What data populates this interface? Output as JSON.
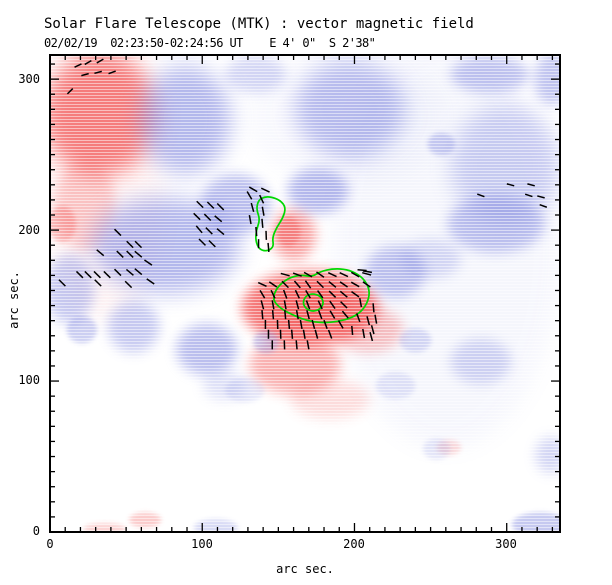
{
  "header": {
    "title": "Solar Flare Telescope (MTK) : vector magnetic field",
    "subtitle": "02/02/19  02:23:50-02:24:56 UT    E 4' 0\"  S 2'38\""
  },
  "axes": {
    "xlabel": "arc sec.",
    "ylabel": "arc sec.",
    "x_tick_labels": [
      "0",
      "100",
      "200",
      "300"
    ],
    "y_tick_labels": [
      "0",
      "100",
      "200",
      "300"
    ]
  },
  "chart_data": {
    "type": "heatmap",
    "title": "Solar Flare Telescope (MTK) : vector magnetic field",
    "subtitle": "02/02/19  02:23:50-02:24:56 UT    E 4' 0\"  S 2'38\"",
    "xlabel": "arc sec.",
    "ylabel": "arc sec.",
    "x_range": [
      0,
      335
    ],
    "y_range": [
      0,
      316
    ],
    "major_tick": 100,
    "minor_tick": 10,
    "grid": false,
    "colors": {
      "positive_polarity": "#f25454",
      "negative_polarity": "#8289e0",
      "contour": "#00d800",
      "vector": "#000000",
      "frame": "#000000",
      "background": "#ffffff"
    },
    "legend": "red = positive magnetic polarity, blue = negative magnetic polarity, black segments = transverse field vectors, green = flare contour",
    "blobs": [
      [
        1,
        35,
        230,
        40,
        90,
        0.07
      ],
      [
        -1,
        260,
        190,
        75,
        135,
        0.07
      ],
      [
        -1,
        195,
        275,
        65,
        45,
        0.06
      ],
      [
        1,
        33,
        277,
        38,
        41,
        0.75
      ],
      [
        1,
        23,
        217,
        20,
        30,
        0.3
      ],
      [
        1,
        8,
        204,
        9,
        12,
        0.35
      ],
      [
        1,
        160,
        197,
        14.5,
        17,
        0.55
      ],
      [
        1,
        156.5,
        199,
        8,
        10,
        0.45
      ],
      [
        1,
        171,
        148.5,
        45,
        25,
        0.8
      ],
      [
        1,
        172,
        150,
        26,
        15,
        0.55
      ],
      [
        1,
        161,
        111,
        30,
        20,
        0.45
      ],
      [
        1,
        209,
        134,
        23,
        15,
        0.35
      ],
      [
        1,
        184,
        88,
        26,
        13,
        0.2
      ],
      [
        1,
        62.5,
        8,
        10.5,
        5,
        0.3
      ],
      [
        1,
        36,
        2,
        14,
        4,
        0.25
      ],
      [
        1,
        262,
        56,
        8,
        5,
        0.2
      ],
      [
        -1,
        89,
        273,
        30,
        36,
        0.6
      ],
      [
        -1,
        197,
        280,
        36,
        32,
        0.55
      ],
      [
        -1,
        135,
        303,
        20,
        12,
        0.35
      ],
      [
        -1,
        289,
        303,
        26,
        12,
        0.5
      ],
      [
        -1,
        330,
        300,
        12,
        17,
        0.5
      ],
      [
        -1,
        299,
        243,
        36,
        40,
        0.4
      ],
      [
        -1,
        293,
        204,
        32,
        19,
        0.5
      ],
      [
        -1,
        76,
        190,
        49,
        32,
        0.6
      ],
      [
        -1,
        13,
        161,
        16,
        23,
        0.45
      ],
      [
        -1,
        122,
        217,
        23,
        20,
        0.55
      ],
      [
        -1,
        176,
        226,
        20,
        15,
        0.6
      ],
      [
        -1,
        227,
        172.5,
        20,
        17,
        0.5
      ],
      [
        -1,
        250,
        181,
        20,
        13,
        0.3
      ],
      [
        -1,
        21,
        134,
        10,
        9,
        0.4
      ],
      [
        -1,
        55,
        136,
        17,
        17,
        0.45
      ],
      [
        -1,
        103,
        121,
        20,
        17,
        0.55
      ],
      [
        -1,
        142,
        126,
        8.5,
        7.5,
        0.4
      ],
      [
        -1,
        115,
        97,
        14.5,
        9.5,
        0.25
      ],
      [
        -1,
        322,
        5,
        18.5,
        8,
        0.45
      ],
      [
        -1,
        329,
        51,
        10,
        12,
        0.35
      ],
      [
        -1,
        283,
        113,
        20,
        15,
        0.35
      ],
      [
        -1,
        240,
        127,
        10.5,
        8,
        0.3
      ],
      [
        -1,
        254,
        55,
        9,
        7,
        0.2
      ],
      [
        -1,
        227,
        97,
        13,
        9,
        0.2
      ],
      [
        -1,
        109,
        3,
        14.5,
        5.5,
        0.3
      ],
      [
        -1,
        257,
        257,
        9,
        7.5,
        0.4
      ],
      [
        -1,
        128,
        94,
        13,
        8,
        0.2
      ],
      [
        -1,
        440,
        0,
        0,
        0,
        0
      ]
    ],
    "contours": [
      {
        "name": "upper-flare-kernel",
        "points": [
          [
            145,
            222
          ],
          [
            151,
            220
          ],
          [
            155,
            215
          ],
          [
            153,
            208
          ],
          [
            149,
            202
          ],
          [
            146,
            195
          ],
          [
            147,
            189
          ],
          [
            143,
            186
          ],
          [
            137.5,
            187
          ],
          [
            135,
            193
          ],
          [
            135.5,
            200
          ],
          [
            138,
            207
          ],
          [
            135.5,
            214
          ],
          [
            137,
            220
          ],
          [
            141,
            222
          ]
        ]
      },
      {
        "name": "main-flare-ribbon",
        "points": [
          [
            146,
            154
          ],
          [
            149,
            162
          ],
          [
            156,
            168
          ],
          [
            164.5,
            170.5
          ],
          [
            172,
            169
          ],
          [
            177.5,
            172.5
          ],
          [
            186,
            174.5
          ],
          [
            195,
            174
          ],
          [
            202,
            171
          ],
          [
            207,
            166.5
          ],
          [
            210,
            160
          ],
          [
            209,
            153
          ],
          [
            205,
            146.5
          ],
          [
            198.5,
            142
          ],
          [
            189.5,
            139.5
          ],
          [
            179,
            138.5
          ],
          [
            168.5,
            140
          ],
          [
            159,
            144
          ],
          [
            151.5,
            148
          ]
        ]
      },
      {
        "name": "inner-flare-core",
        "points": [
          [
            172.5,
            158
          ],
          [
            177.5,
            156.5
          ],
          [
            180,
            152
          ],
          [
            177.5,
            147.5
          ],
          [
            172.5,
            146
          ],
          [
            168,
            148
          ],
          [
            166,
            152
          ],
          [
            168,
            156.5
          ]
        ]
      }
    ],
    "vectors": [
      [
        18.4,
        309,
        25,
        5
      ],
      [
        25,
        311,
        30,
        5
      ],
      [
        32.9,
        312,
        30,
        5
      ],
      [
        23,
        303,
        15,
        5
      ],
      [
        31.6,
        304.5,
        15,
        5
      ],
      [
        40.8,
        304.5,
        20,
        5
      ],
      [
        13.2,
        292,
        45,
        5
      ],
      [
        302.5,
        230,
        -15,
        5
      ],
      [
        316,
        230,
        -15,
        5
      ],
      [
        283,
        223,
        -20,
        5
      ],
      [
        314.5,
        223,
        -18,
        5
      ],
      [
        322.5,
        222,
        -15,
        5
      ],
      [
        324,
        216,
        -20,
        5
      ],
      [
        44.5,
        198.5,
        -45,
        6
      ],
      [
        52.5,
        190.5,
        -45,
        6
      ],
      [
        58,
        190.5,
        -45,
        6
      ],
      [
        33,
        185,
        -40,
        6
      ],
      [
        46,
        184,
        -45,
        6
      ],
      [
        52.5,
        184,
        -45,
        6
      ],
      [
        58,
        184,
        -40,
        6
      ],
      [
        64.5,
        178.5,
        -35,
        6
      ],
      [
        19.5,
        170.5,
        -45,
        6
      ],
      [
        25,
        170.5,
        -45,
        6
      ],
      [
        31,
        170.5,
        -45,
        6
      ],
      [
        37.5,
        170.5,
        -45,
        6
      ],
      [
        44.5,
        172,
        -45,
        6
      ],
      [
        52.5,
        172,
        -40,
        6
      ],
      [
        58,
        172.5,
        -40,
        6
      ],
      [
        31.5,
        165,
        -45,
        6
      ],
      [
        51.5,
        164,
        -45,
        6
      ],
      [
        66,
        166,
        -35,
        6
      ],
      [
        8,
        165,
        -45,
        6
      ],
      [
        98.5,
        217,
        -45,
        6
      ],
      [
        105.5,
        216.5,
        -45,
        6
      ],
      [
        112,
        215.5,
        -45,
        6
      ],
      [
        96.5,
        209,
        -45,
        6
      ],
      [
        103.5,
        208.5,
        -45,
        6
      ],
      [
        110.5,
        207.5,
        -40,
        6
      ],
      [
        98,
        200.5,
        -50,
        6
      ],
      [
        104.5,
        199.5,
        -45,
        6
      ],
      [
        112,
        199,
        -40,
        6
      ],
      [
        100,
        192,
        -45,
        6
      ],
      [
        106.5,
        191,
        -45,
        6
      ],
      [
        133.5,
        227,
        -30,
        6
      ],
      [
        141.5,
        226.5,
        -25,
        6
      ],
      [
        131,
        223,
        -60,
        6
      ],
      [
        139,
        220.5,
        -65,
        6
      ],
      [
        133,
        215,
        -75,
        6
      ],
      [
        140,
        212.5,
        -80,
        6
      ],
      [
        131.5,
        207,
        -80,
        6
      ],
      [
        139.5,
        204.5,
        -85,
        6
      ],
      [
        135.5,
        199,
        -85,
        6
      ],
      [
        142,
        196.5,
        -88,
        6
      ],
      [
        137,
        191,
        -90,
        6
      ],
      [
        143.5,
        188.5,
        -85,
        6
      ],
      [
        154.5,
        170.5,
        -15,
        6
      ],
      [
        162.5,
        170.5,
        -20,
        6
      ],
      [
        169.5,
        170.5,
        -30,
        6
      ],
      [
        177.5,
        170.5,
        -35,
        6
      ],
      [
        185.5,
        170.5,
        -25,
        6
      ],
      [
        193,
        170.5,
        -25,
        6
      ],
      [
        200.5,
        170.5,
        -30,
        6
      ],
      [
        208,
        171,
        -15,
        6
      ],
      [
        139.5,
        164,
        -25,
        6
      ],
      [
        146.5,
        164,
        -35,
        6
      ],
      [
        154.5,
        164,
        -45,
        6
      ],
      [
        162.5,
        164,
        -50,
        6
      ],
      [
        169.5,
        164,
        -55,
        6
      ],
      [
        177.5,
        164,
        -45,
        6
      ],
      [
        185.5,
        164,
        -40,
        6
      ],
      [
        193,
        164,
        -35,
        6
      ],
      [
        200.5,
        164,
        -30,
        6
      ],
      [
        208,
        164,
        -35,
        6
      ],
      [
        139.5,
        157.5,
        -60,
        6
      ],
      [
        146.5,
        157.5,
        -65,
        6
      ],
      [
        154.5,
        157.5,
        -70,
        6
      ],
      [
        162.5,
        157.5,
        -65,
        6
      ],
      [
        169.5,
        157.5,
        -60,
        6
      ],
      [
        177.5,
        157.5,
        -55,
        6
      ],
      [
        185.5,
        157.5,
        -45,
        6
      ],
      [
        193,
        157.5,
        -40,
        6
      ],
      [
        200.5,
        157.5,
        -35,
        6
      ],
      [
        139.5,
        150.5,
        -75,
        6
      ],
      [
        146.5,
        150.5,
        -80,
        6
      ],
      [
        154.5,
        150.5,
        -80,
        6
      ],
      [
        162.5,
        150.5,
        -75,
        6
      ],
      [
        169.5,
        150.5,
        -70,
        6
      ],
      [
        177.5,
        150.5,
        -65,
        6
      ],
      [
        185.5,
        150.5,
        -55,
        6
      ],
      [
        193,
        150.5,
        -45,
        6
      ],
      [
        139.5,
        144,
        -85,
        6
      ],
      [
        146.5,
        144,
        -85,
        6
      ],
      [
        154.5,
        144,
        -85,
        6
      ],
      [
        162.5,
        144,
        -80,
        6
      ],
      [
        169.5,
        144,
        -75,
        6
      ],
      [
        177.5,
        144,
        -70,
        6
      ],
      [
        185.5,
        144,
        -60,
        6
      ],
      [
        194,
        144,
        -50,
        6
      ],
      [
        141.5,
        137.5,
        -90,
        6
      ],
      [
        149.5,
        137.5,
        -88,
        6
      ],
      [
        157,
        137.5,
        -85,
        6
      ],
      [
        165,
        137.5,
        -80,
        6
      ],
      [
        173,
        137.5,
        -75,
        6
      ],
      [
        181,
        137.5,
        -70,
        6
      ],
      [
        191,
        137.5,
        -60,
        6
      ],
      [
        143.5,
        131,
        -90,
        6
      ],
      [
        151.5,
        131,
        -88,
        6
      ],
      [
        159,
        131,
        -85,
        6
      ],
      [
        167,
        131,
        -80,
        6
      ],
      [
        175,
        131,
        -75,
        6
      ],
      [
        184,
        131,
        -70,
        6
      ],
      [
        146,
        124,
        -90,
        6
      ],
      [
        154,
        124,
        -88,
        6
      ],
      [
        162,
        124,
        -85,
        6
      ],
      [
        169.5,
        124,
        -80,
        6
      ],
      [
        205,
        173.5,
        -5,
        6
      ],
      [
        208.5,
        172.5,
        -10,
        6
      ],
      [
        212.5,
        148.5,
        -85,
        6
      ],
      [
        214,
        141,
        -80,
        6
      ],
      [
        212,
        134,
        -75,
        6
      ],
      [
        204,
        152,
        -80,
        6
      ],
      [
        209,
        140,
        -75,
        6
      ],
      [
        206,
        131.5,
        -80,
        6
      ],
      [
        211,
        129.5,
        -75,
        6
      ],
      [
        198.5,
        133.5,
        -85,
        6
      ],
      [
        202.5,
        142,
        -70,
        6
      ]
    ]
  }
}
